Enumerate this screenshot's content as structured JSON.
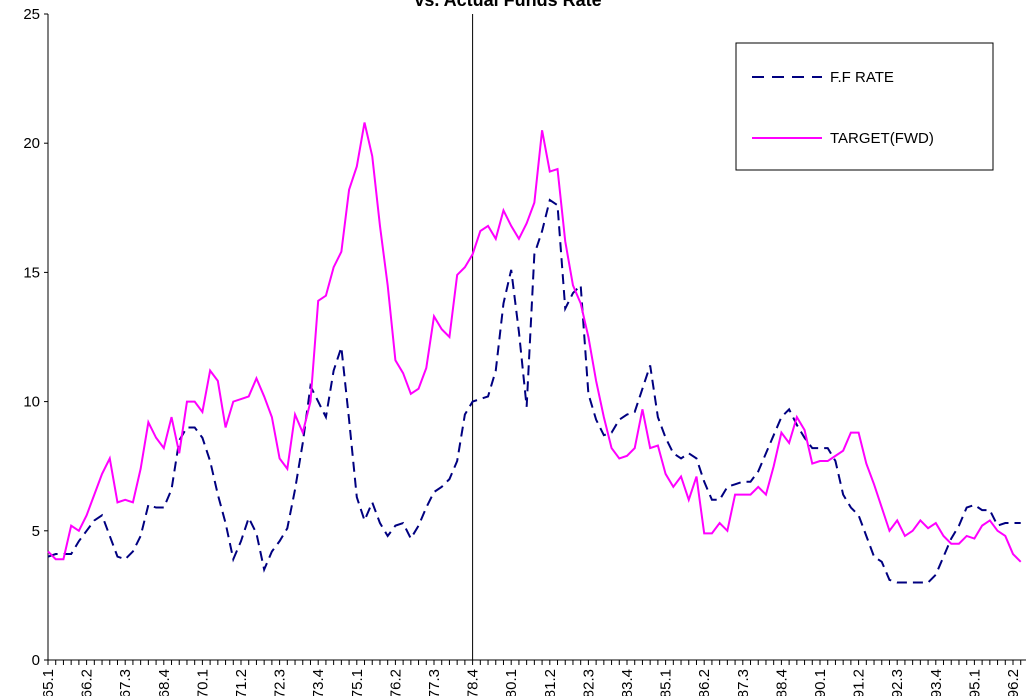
{
  "chart_data": {
    "type": "line",
    "title": "vs. Actual Funds Rate",
    "categories": [
      "65.1",
      null,
      null,
      null,
      null,
      "66.2",
      null,
      null,
      null,
      null,
      "67.3",
      null,
      null,
      null,
      null,
      "68.4",
      null,
      null,
      null,
      null,
      "70.1",
      null,
      null,
      null,
      null,
      "71.2",
      null,
      null,
      null,
      null,
      "72.3",
      null,
      null,
      null,
      null,
      "73.4",
      null,
      null,
      null,
      null,
      "75.1",
      null,
      null,
      null,
      null,
      "76.2",
      null,
      null,
      null,
      null,
      "77.3",
      null,
      null,
      null,
      null,
      "78.4",
      null,
      null,
      null,
      null,
      "80.1",
      null,
      null,
      null,
      null,
      "81.2",
      null,
      null,
      null,
      null,
      "82.3",
      null,
      null,
      null,
      null,
      "83.4",
      null,
      null,
      null,
      null,
      "85.1",
      null,
      null,
      null,
      null,
      "86.2",
      null,
      null,
      null,
      null,
      "87.3",
      null,
      null,
      null,
      null,
      "88.4",
      null,
      null,
      null,
      null,
      "90.1",
      null,
      null,
      null,
      null,
      "91.2",
      null,
      null,
      null,
      null,
      "92.3",
      null,
      null,
      null,
      null,
      "93.4",
      null,
      null,
      null,
      null,
      "95.1",
      null,
      null,
      null,
      null,
      "96.2",
      null
    ],
    "series": [
      {
        "name": "F.F RATE",
        "color": "#000080",
        "dash": true,
        "values": [
          4.0,
          4.1,
          4.1,
          4.1,
          4.6,
          5.0,
          5.4,
          5.6,
          4.8,
          4.0,
          3.9,
          4.2,
          4.8,
          6.0,
          5.9,
          5.9,
          6.6,
          8.5,
          9.0,
          9.0,
          8.6,
          7.7,
          6.4,
          5.3,
          3.9,
          4.6,
          5.5,
          4.9,
          3.5,
          4.2,
          4.6,
          5.1,
          6.6,
          8.4,
          10.6,
          10.0,
          9.4,
          11.2,
          12.1,
          9.3,
          6.3,
          5.4,
          6.1,
          5.3,
          4.8,
          5.2,
          5.3,
          4.7,
          5.2,
          5.9,
          6.5,
          6.7,
          7.0,
          7.7,
          9.5,
          10.0,
          10.1,
          10.2,
          11.2,
          13.8,
          15.1,
          12.7,
          9.8,
          15.7,
          16.6,
          17.8,
          17.6,
          13.6,
          14.2,
          14.5,
          10.3,
          9.3,
          8.7,
          8.8,
          9.3,
          9.5,
          9.6,
          10.5,
          11.4,
          9.4,
          8.6,
          8.0,
          7.8,
          8.0,
          7.8,
          6.9,
          6.2,
          6.2,
          6.7,
          6.8,
          6.9,
          6.9,
          7.3,
          8.0,
          8.7,
          9.4,
          9.7,
          9.1,
          8.6,
          8.2,
          8.2,
          8.2,
          7.7,
          6.4,
          5.9,
          5.6,
          4.8,
          4.0,
          3.8,
          3.1,
          3.0,
          3.0,
          3.0,
          3.0,
          3.0,
          3.3,
          4.0,
          4.7,
          5.2,
          5.9,
          6.0,
          5.8,
          5.8,
          5.2,
          5.3,
          5.3,
          5.3
        ]
      },
      {
        "name": "TARGET(FWD)",
        "color": "#ff00ff",
        "dash": false,
        "values": [
          4.2,
          3.9,
          3.9,
          5.2,
          5.0,
          5.6,
          6.4,
          7.2,
          7.8,
          6.1,
          6.2,
          6.1,
          7.4,
          9.2,
          8.6,
          8.2,
          9.4,
          8.0,
          10.0,
          10.0,
          9.6,
          11.2,
          10.8,
          9.0,
          10.0,
          10.1,
          10.2,
          10.9,
          10.2,
          9.4,
          7.8,
          7.4,
          9.5,
          8.8,
          10.0,
          13.9,
          14.1,
          15.2,
          15.8,
          18.2,
          19.1,
          20.8,
          19.5,
          16.8,
          14.5,
          11.6,
          11.1,
          10.3,
          10.5,
          11.3,
          13.3,
          12.8,
          12.5,
          14.9,
          15.2,
          15.7,
          16.6,
          16.8,
          16.3,
          17.4,
          16.8,
          16.3,
          16.9,
          17.7,
          20.5,
          18.9,
          19.0,
          16.2,
          14.5,
          13.8,
          12.5,
          10.8,
          9.4,
          8.2,
          7.8,
          7.9,
          8.2,
          9.7,
          8.2,
          8.3,
          7.2,
          6.7,
          7.1,
          6.2,
          7.1,
          4.9,
          4.9,
          5.3,
          5.0,
          6.4,
          6.4,
          6.4,
          6.7,
          6.4,
          7.5,
          8.8,
          8.4,
          9.4,
          8.9,
          7.6,
          7.7,
          7.7,
          7.9,
          8.1,
          8.8,
          8.8,
          7.6,
          6.8,
          5.9,
          5.0,
          5.4,
          4.8,
          5.0,
          5.4,
          5.1,
          5.3,
          4.8,
          4.5,
          4.5,
          4.8,
          4.7,
          5.2,
          5.4,
          5.0,
          4.8,
          4.1,
          3.8
        ]
      }
    ],
    "ylim": [
      0,
      25
    ],
    "yticks": [
      0,
      5,
      10,
      15,
      20,
      25
    ],
    "reference_line": "78.4",
    "legend": "top-right"
  }
}
